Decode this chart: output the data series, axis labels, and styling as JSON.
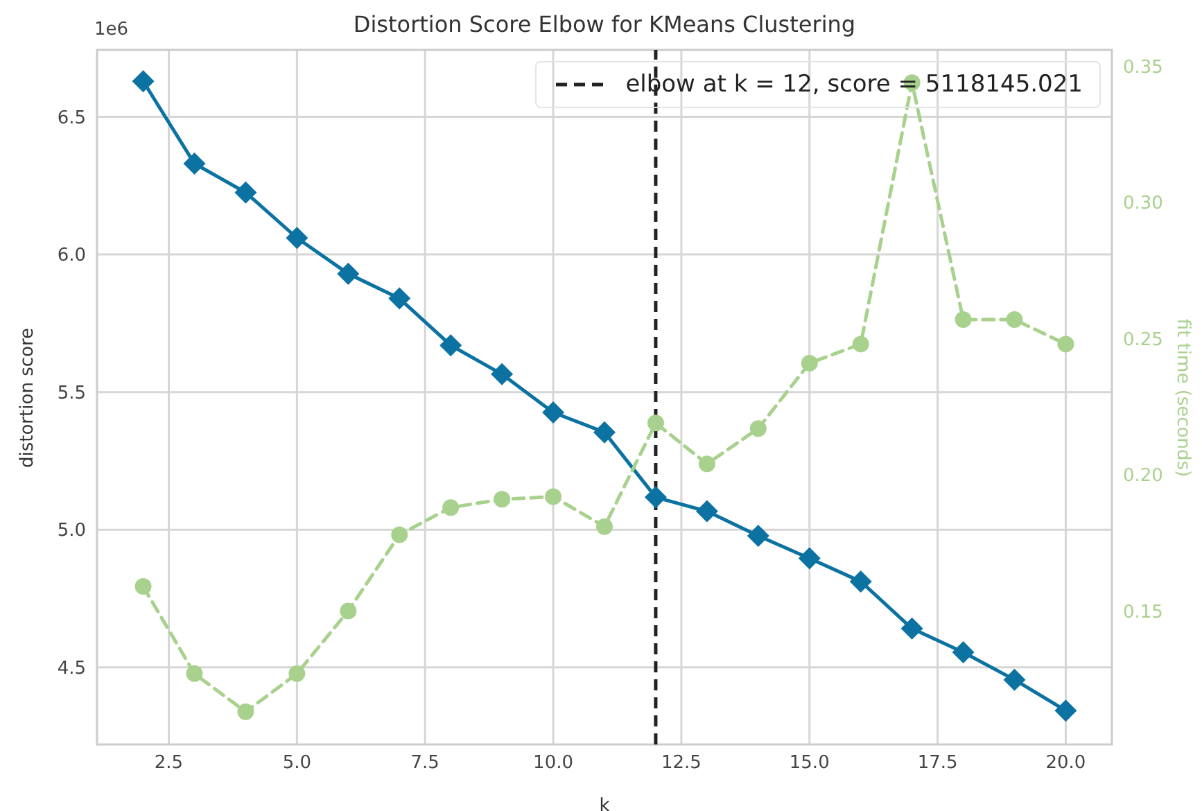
{
  "chart_data": {
    "type": "line",
    "title": "Distortion Score Elbow for KMeans Clustering",
    "xlabel": "k",
    "ylabel": "distortion score",
    "y2label": "fit time (seconds)",
    "annotations": [
      "1e6"
    ],
    "x": [
      2,
      3,
      4,
      5,
      6,
      7,
      8,
      9,
      10,
      11,
      12,
      13,
      14,
      15,
      16,
      17,
      18,
      19,
      20
    ],
    "series": [
      {
        "color": "#0b72a2",
        "marker": "diamond",
        "line_style": "solid",
        "values": [
          6.629,
          6.33,
          6.225,
          6.06,
          5.93,
          5.84,
          5.67,
          5.565,
          5.426,
          5.354,
          5.118,
          5.067,
          4.978,
          4.896,
          4.812,
          4.641,
          4.555,
          4.455,
          4.343
        ]
      },
      {
        "color": "#a9d18e",
        "marker": "circle",
        "line_style": "dashed",
        "axis": "y2",
        "values": [
          0.159,
          0.127,
          0.113,
          0.127,
          0.15,
          0.178,
          0.188,
          0.191,
          0.192,
          0.181,
          0.219,
          0.204,
          0.217,
          0.241,
          0.248,
          0.344,
          0.257,
          0.257,
          0.248
        ]
      }
    ],
    "xlim": [
      1.1,
      20.9
    ],
    "xticks": [
      2.5,
      {
        "value": 5,
        "label": "5.0"
      },
      7.5,
      {
        "value": 10,
        "label": "10.0"
      },
      12.5,
      {
        "value": 15,
        "label": "15.0"
      },
      17.5,
      {
        "value": 20,
        "label": "20.0"
      }
    ],
    "ylim": [
      4.22,
      6.743
    ],
    "yticks": [
      4.5,
      {
        "value": 5,
        "label": "5.0"
      },
      5.5,
      {
        "value": 6,
        "label": "6.0"
      },
      6.5
    ],
    "y2lim": [
      0.101,
      0.356
    ],
    "y2ticks": [
      0.15,
      {
        "value": 0.2,
        "label": "0.20"
      },
      0.25,
      {
        "value": 0.3,
        "label": "0.30"
      },
      0.35
    ],
    "ref_lines": [
      {
        "axis": "x",
        "value": 12,
        "label": "elbow at k = 12, score = 5118145.021",
        "color": "#222222",
        "line_style": "dashed"
      }
    ],
    "grid": true,
    "legend": "top right"
  }
}
